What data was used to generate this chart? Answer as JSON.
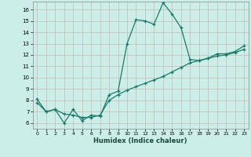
{
  "xlabel": "Humidex (Indice chaleur)",
  "ylabel": "",
  "background_color": "#cceee8",
  "grid_color": "#c8b8b0",
  "line_color": "#1a7a6a",
  "xlim": [
    -0.5,
    23.5
  ],
  "ylim": [
    5.5,
    16.7
  ],
  "xticks": [
    0,
    1,
    2,
    3,
    4,
    5,
    6,
    7,
    8,
    9,
    10,
    11,
    12,
    13,
    14,
    15,
    16,
    17,
    18,
    19,
    20,
    21,
    22,
    23
  ],
  "yticks": [
    6,
    7,
    8,
    9,
    10,
    11,
    12,
    13,
    14,
    15,
    16
  ],
  "line1_x": [
    0,
    1,
    2,
    3,
    4,
    5,
    6,
    7,
    8,
    9,
    10,
    11,
    12,
    13,
    14,
    15,
    16,
    17,
    18,
    19,
    20,
    21,
    22,
    23
  ],
  "line1_y": [
    8.1,
    7.0,
    7.2,
    6.0,
    7.2,
    6.2,
    6.7,
    6.6,
    8.5,
    8.8,
    13.0,
    15.1,
    15.0,
    14.7,
    16.6,
    15.6,
    14.4,
    11.6,
    11.5,
    11.7,
    12.1,
    12.1,
    12.3,
    12.8
  ],
  "line2_x": [
    0,
    1,
    2,
    3,
    4,
    5,
    6,
    7,
    8,
    9,
    10,
    11,
    12,
    13,
    14,
    15,
    16,
    17,
    18,
    19,
    20,
    21,
    22,
    23
  ],
  "line2_y": [
    7.8,
    7.0,
    7.2,
    6.8,
    6.7,
    6.5,
    6.5,
    6.7,
    8.0,
    8.5,
    8.9,
    9.2,
    9.5,
    9.8,
    10.1,
    10.5,
    10.9,
    11.3,
    11.5,
    11.7,
    11.9,
    12.0,
    12.2,
    12.5
  ]
}
